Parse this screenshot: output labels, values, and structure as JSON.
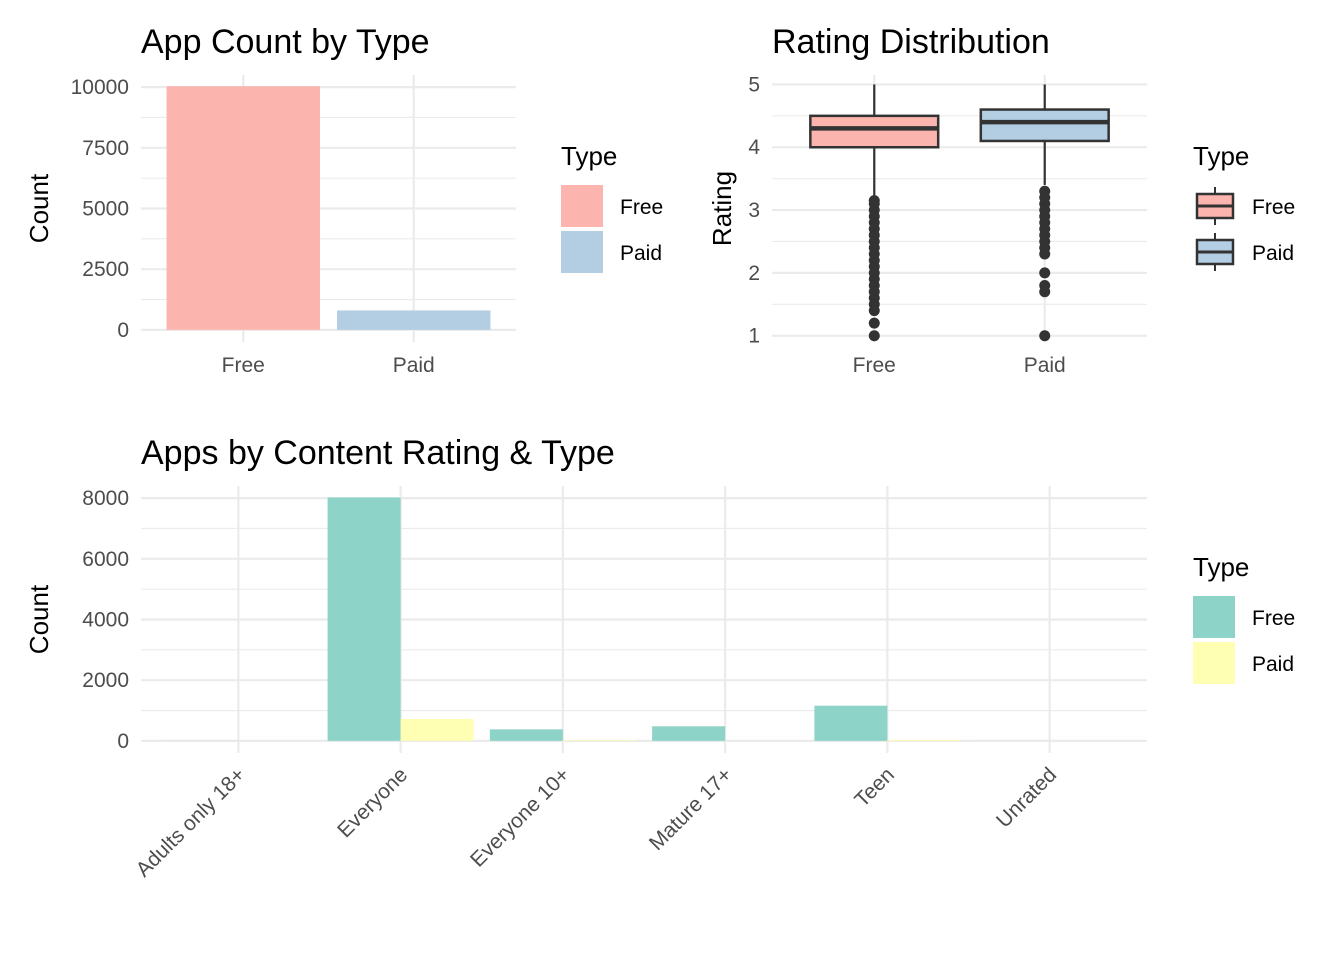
{
  "chart_data": [
    {
      "id": "type_count",
      "type": "bar",
      "title": "App Count by Type",
      "xlabel": "",
      "ylabel": "Count",
      "categories": [
        "Free",
        "Paid"
      ],
      "values": [
        10040,
        800
      ],
      "colors": [
        "#fbb4ae",
        "#b3cde3"
      ],
      "ylim": [
        -500,
        10500
      ],
      "yticks": [
        0,
        2500,
        5000,
        7500,
        10000
      ],
      "yticks_labels": [
        "0",
        "2500",
        "5000",
        "7500",
        "10000"
      ],
      "grid": true,
      "legend": {
        "title": "Type",
        "position": "right",
        "entries": [
          "Free",
          "Paid"
        ]
      }
    },
    {
      "id": "rating_dist",
      "type": "box",
      "title": "Rating Distribution",
      "xlabel": "",
      "ylabel": "Rating",
      "categories": [
        "Free",
        "Paid"
      ],
      "colors": [
        "#fbb4ae",
        "#b3cde3"
      ],
      "boxes": [
        {
          "name": "Free",
          "whisker_low": 3.2,
          "q1": 4.0,
          "median": 4.3,
          "q3": 4.5,
          "whisker_high": 5.0,
          "outliers": [
            3.15,
            3.1,
            3.0,
            2.9,
            2.8,
            2.7,
            2.6,
            2.5,
            2.4,
            2.3,
            2.2,
            2.1,
            2.0,
            1.9,
            1.8,
            1.7,
            1.6,
            1.5,
            1.4,
            1.2,
            1.0
          ]
        },
        {
          "name": "Paid",
          "whisker_low": 3.4,
          "q1": 4.1,
          "median": 4.4,
          "q3": 4.6,
          "whisker_high": 5.0,
          "outliers": [
            3.3,
            3.2,
            3.1,
            3.0,
            2.9,
            2.8,
            2.7,
            2.6,
            2.5,
            2.4,
            2.3,
            2.0,
            1.8,
            1.7,
            1.0
          ]
        }
      ],
      "ylim": [
        0.9,
        5.15
      ],
      "yticks": [
        1,
        2,
        3,
        4,
        5
      ],
      "yticks_labels": [
        "1",
        "2",
        "3",
        "4",
        "5"
      ],
      "grid": true,
      "legend": {
        "title": "Type",
        "position": "right",
        "entries": [
          "Free",
          "Paid"
        ]
      }
    },
    {
      "id": "content_rating",
      "type": "bar",
      "title": "Apps by Content Rating & Type",
      "xlabel": "",
      "ylabel": "Count",
      "categories": [
        "Adults only 18+",
        "Everyone",
        "Everyone 10+",
        "Mature 17+",
        "Teen",
        "Unrated"
      ],
      "series": [
        {
          "name": "Free",
          "values": [
            3,
            8020,
            380,
            480,
            1160,
            2
          ],
          "color": "#8dd3c7"
        },
        {
          "name": "Paid",
          "values": [
            0,
            720,
            20,
            0,
            30,
            0
          ],
          "color": "#ffffb3"
        }
      ],
      "ylim": [
        -400,
        8400
      ],
      "yticks": [
        0,
        2000,
        4000,
        6000,
        8000
      ],
      "yticks_labels": [
        "0",
        "2000",
        "4000",
        "6000",
        "8000"
      ],
      "grid": true,
      "legend": {
        "title": "Type",
        "position": "right",
        "entries": [
          "Free",
          "Paid"
        ]
      }
    }
  ]
}
